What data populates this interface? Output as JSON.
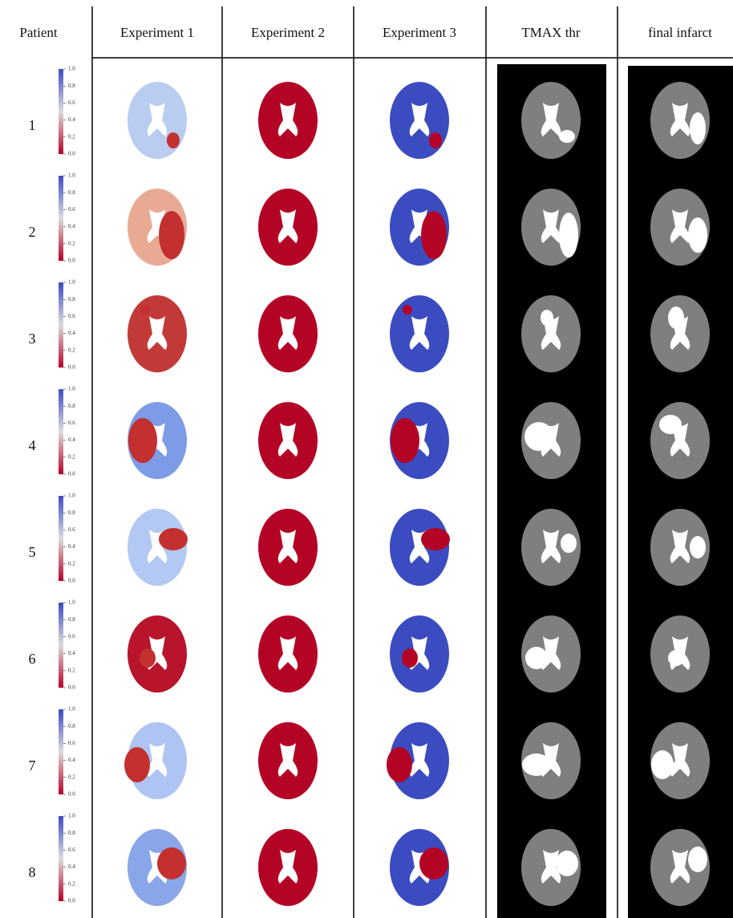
{
  "header": {
    "patient": "Patient",
    "columns": [
      "Experiment 1",
      "Experiment 2",
      "Experiment 3",
      "TMAX thr",
      "final infarct"
    ]
  },
  "patients": [
    "1",
    "2",
    "3",
    "4",
    "5",
    "6",
    "7",
    "8"
  ],
  "colorbar_ticks": [
    "0.0",
    "0.2",
    "0.4",
    "0.6",
    "0.8",
    "1.0"
  ]
}
